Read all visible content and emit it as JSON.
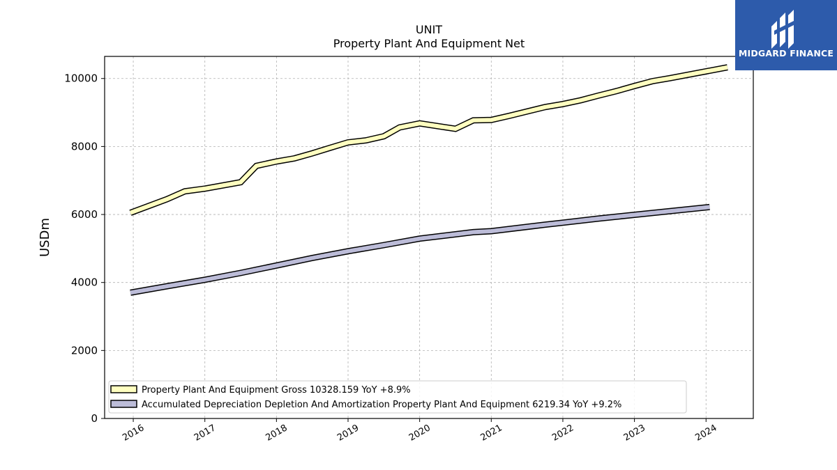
{
  "header": {
    "title": "UNIT",
    "subtitle": "Property Plant And Equipment Net"
  },
  "brand": {
    "name": "MIDGARD FINANCE",
    "color": "#2d5bab"
  },
  "chart_data": {
    "type": "line",
    "title": "UNIT",
    "subtitle": "Property Plant And Equipment Net",
    "xlabel": "",
    "ylabel": "USDm",
    "xlim": [
      2015.6,
      2024.66
    ],
    "ylim": [
      0,
      10650
    ],
    "x_ticks": [
      2016,
      2017,
      2018,
      2019,
      2020,
      2021,
      2022,
      2023,
      2024
    ],
    "y_ticks": [
      0,
      2000,
      4000,
      6000,
      8000,
      10000
    ],
    "grid": true,
    "legend_position": "lower-left",
    "series": [
      {
        "name": "Property Plant And Equipment Gross",
        "legend_label": "Property Plant And Equipment Gross  10328.159 YoY +8.9%",
        "color": "#ffffc0",
        "points": [
          [
            2015.96,
            6050
          ],
          [
            2016.47,
            6450
          ],
          [
            2016.72,
            6680
          ],
          [
            2017.0,
            6760
          ],
          [
            2017.5,
            6950
          ],
          [
            2017.72,
            7430
          ],
          [
            2018.0,
            7560
          ],
          [
            2018.25,
            7650
          ],
          [
            2018.5,
            7800
          ],
          [
            2018.75,
            7960
          ],
          [
            2019.0,
            8120
          ],
          [
            2019.25,
            8180
          ],
          [
            2019.5,
            8300
          ],
          [
            2019.72,
            8560
          ],
          [
            2020.0,
            8680
          ],
          [
            2020.5,
            8520
          ],
          [
            2020.75,
            8770
          ],
          [
            2021.0,
            8780
          ],
          [
            2021.25,
            8900
          ],
          [
            2021.75,
            9160
          ],
          [
            2022.0,
            9250
          ],
          [
            2022.25,
            9360
          ],
          [
            2022.5,
            9500
          ],
          [
            2022.75,
            9630
          ],
          [
            2023.0,
            9780
          ],
          [
            2023.25,
            9920
          ],
          [
            2023.5,
            10010
          ],
          [
            2024.3,
            10328.159
          ]
        ]
      },
      {
        "name": "Accumulated Depreciation Depletion And Amortization Property Plant And Equipment",
        "legend_label": "Accumulated Depreciation Depletion And Amortization Property Plant And Equipment  6219.34 YoY +9.2%",
        "color": "#bcbcd8",
        "points": [
          [
            2015.96,
            3700
          ],
          [
            2016.5,
            3900
          ],
          [
            2017.0,
            4080
          ],
          [
            2017.5,
            4280
          ],
          [
            2018.0,
            4500
          ],
          [
            2018.5,
            4720
          ],
          [
            2019.0,
            4920
          ],
          [
            2019.5,
            5100
          ],
          [
            2020.0,
            5290
          ],
          [
            2020.75,
            5480
          ],
          [
            2021.0,
            5510
          ],
          [
            2021.75,
            5700
          ],
          [
            2022.0,
            5760
          ],
          [
            2022.5,
            5880
          ],
          [
            2023.0,
            5990
          ],
          [
            2024.05,
            6219.34
          ]
        ]
      }
    ]
  }
}
